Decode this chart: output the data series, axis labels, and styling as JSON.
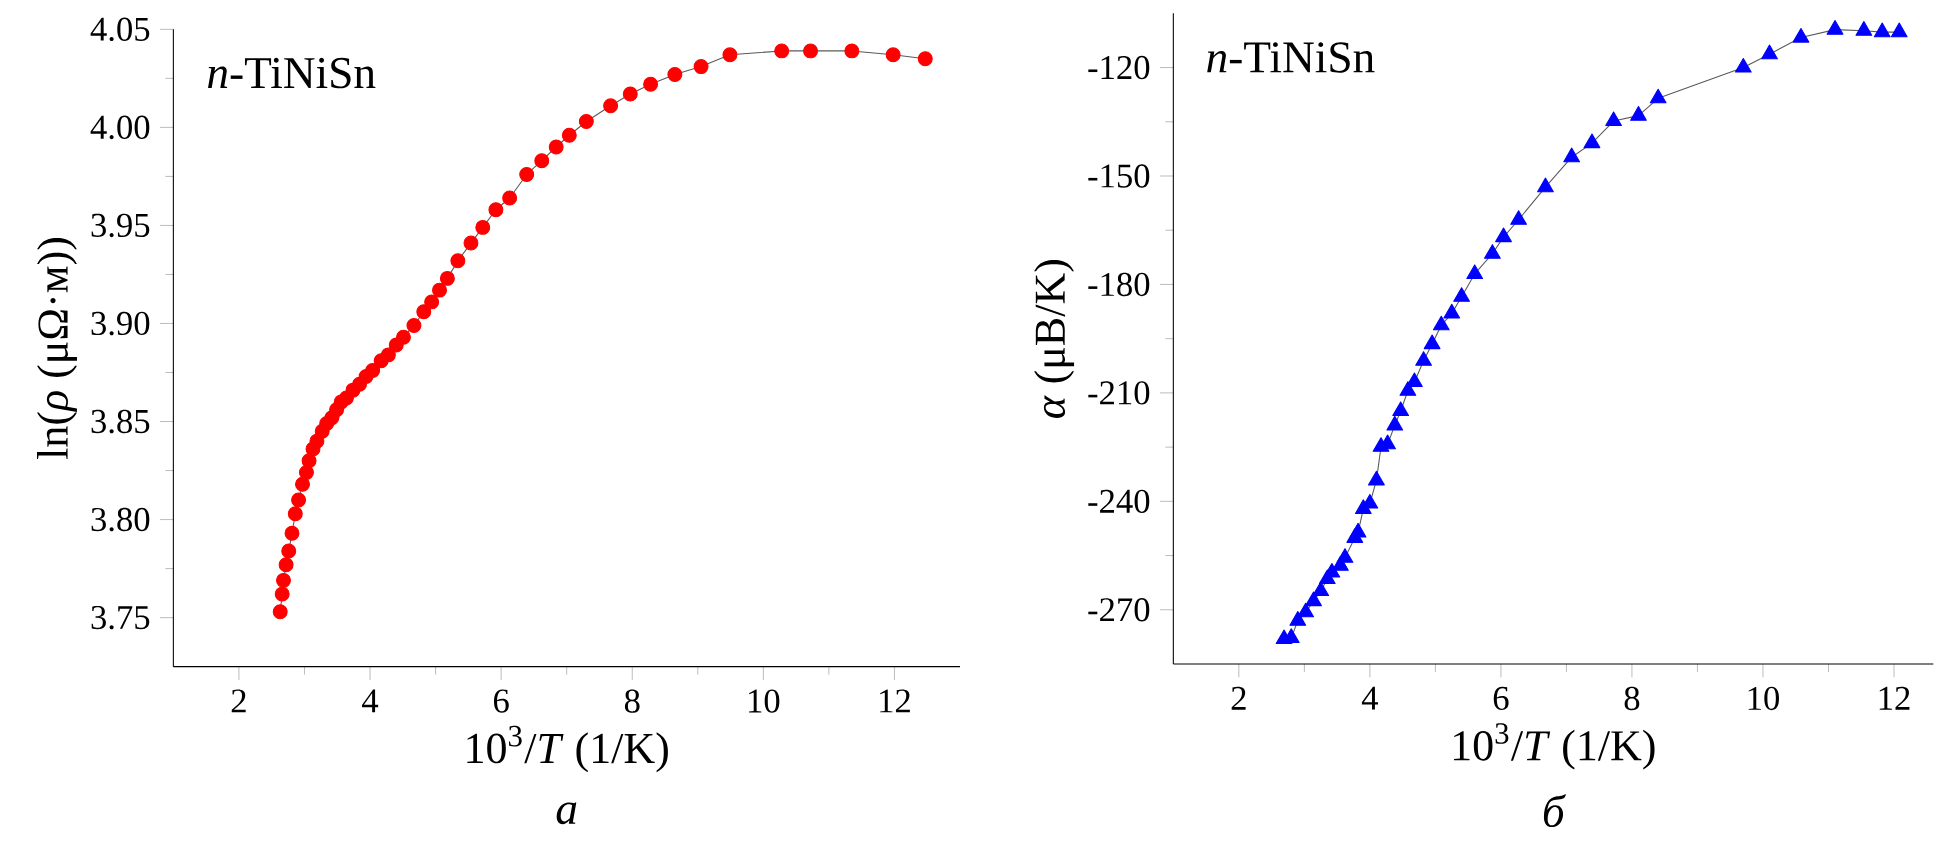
{
  "chart_data": [
    {
      "type": "line",
      "xlabel": "10$^{3}$/*T* (1/K)",
      "ylabel": "ln(*ρ* (μΩ·м))",
      "annotations": [
        "*n*-TiNiSn",
        "а"
      ],
      "x": [
        2.63,
        2.66,
        2.68,
        2.72,
        2.76,
        2.81,
        2.86,
        2.91,
        2.97,
        3.03,
        3.07,
        3.13,
        3.19,
        3.27,
        3.34,
        3.42,
        3.49,
        3.56,
        3.64,
        3.74,
        3.84,
        3.94,
        4.04,
        4.17,
        4.28,
        4.4,
        4.51,
        4.67,
        4.82,
        4.94,
        5.06,
        5.18,
        5.34,
        5.54,
        5.72,
        5.92,
        6.13,
        6.39,
        6.62,
        6.84,
        7.04,
        7.3,
        7.67,
        7.97,
        8.28,
        8.65,
        9.05,
        9.49,
        10.28,
        10.72,
        11.35,
        11.98,
        12.47
      ],
      "series": [
        {
          "color": "#ff0000",
          "values": [
            3.753,
            3.762,
            3.769,
            3.777,
            3.784,
            3.793,
            3.803,
            3.81,
            3.818,
            3.824,
            3.83,
            3.836,
            3.84,
            3.845,
            3.849,
            3.852,
            3.856,
            3.86,
            3.862,
            3.866,
            3.869,
            3.873,
            3.876,
            3.881,
            3.884,
            3.889,
            3.893,
            3.899,
            3.906,
            3.911,
            3.917,
            3.923,
            3.932,
            3.941,
            3.949,
            3.958,
            3.964,
            3.976,
            3.983,
            3.99,
            3.996,
            4.003,
            4.011,
            4.017,
            4.022,
            4.027,
            4.031,
            4.037,
            4.039,
            4.039,
            4.039,
            4.037,
            4.035
          ]
        }
      ],
      "xlim": [
        1,
        13
      ],
      "xticks": [
        2,
        4,
        6,
        8,
        10,
        12
      ],
      "ylim": [
        3.725,
        4.05
      ],
      "yticks": [
        {
          "value": 3.75,
          "label": "3.75"
        },
        {
          "value": 3.8,
          "label": "3.80"
        },
        {
          "value": 3.85,
          "label": "3.85"
        },
        {
          "value": 3.9,
          "label": "3.90"
        },
        {
          "value": 3.95,
          "label": "3.95"
        },
        {
          "value": 4.0,
          "label": "4.00"
        },
        {
          "value": 4.05,
          "label": "4.05"
        }
      ],
      "marker": "circle",
      "line_style": "solid",
      "grid": false
    },
    {
      "type": "line",
      "xlabel": "10$^{3}$/*T* (1/K)",
      "ylabel": "*α* (μB/K)",
      "annotations": [
        "*n*-TiNiSn",
        "б"
      ],
      "x": [
        2.69,
        2.8,
        2.9,
        3.02,
        3.14,
        3.25,
        3.35,
        3.42,
        3.55,
        3.62,
        3.77,
        3.82,
        3.9,
        4.0,
        4.1,
        4.17,
        4.27,
        4.38,
        4.47,
        4.58,
        4.68,
        4.82,
        4.95,
        5.09,
        5.25,
        5.4,
        5.6,
        5.87,
        6.04,
        6.27,
        6.68,
        7.08,
        7.39,
        7.72,
        8.1,
        8.4,
        9.7,
        10.1,
        10.58,
        11.1,
        11.54,
        11.82,
        12.08
      ],
      "series": [
        {
          "color": "#0000ff",
          "values": [
            -278.1,
            -277.8,
            -273.0,
            -270.7,
            -267.6,
            -264.8,
            -261.5,
            -259.7,
            -257.8,
            -255.6,
            -250.1,
            -248.6,
            -242.1,
            -240.6,
            -234.2,
            -224.9,
            -224.2,
            -219.0,
            -215.0,
            -209.4,
            -207.0,
            -201.1,
            -196.5,
            -191.3,
            -188.0,
            -183.4,
            -177.1,
            -171.5,
            -166.9,
            -162.1,
            -153.1,
            -144.8,
            -140.9,
            -134.8,
            -133.3,
            -128.5,
            -120.0,
            -116.3,
            -111.7,
            -109.5,
            -109.8,
            -110.2,
            -110.2
          ]
        }
      ],
      "xlim": [
        1,
        12.6
      ],
      "xticks": [
        2,
        4,
        6,
        8,
        10,
        12
      ],
      "ylim": [
        -285,
        -105
      ],
      "yticks": [
        -270,
        -240,
        -210,
        -180,
        -150,
        -120
      ],
      "marker": "triangle",
      "line_style": "solid",
      "grid": false
    }
  ]
}
